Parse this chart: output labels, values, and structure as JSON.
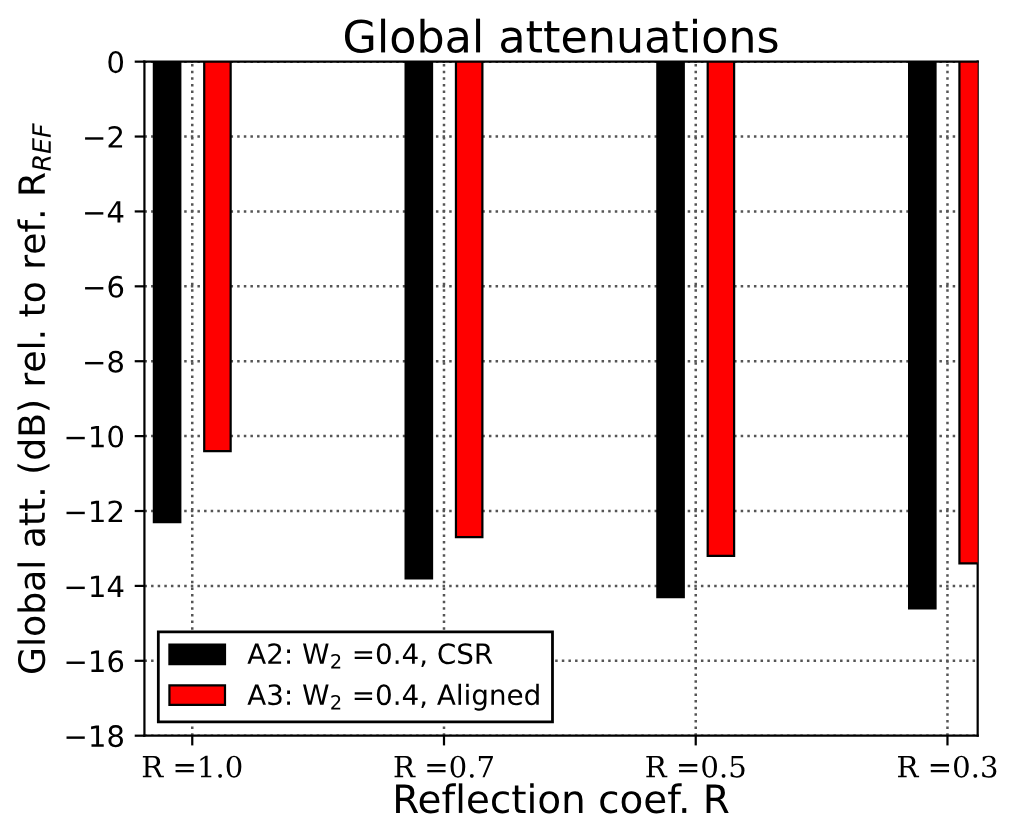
{
  "chart_data": {
    "type": "bar",
    "title": "Global attenuations",
    "xlabel": "Reflection coef. R",
    "ylabel": "Global att. (dB) rel. to ref. R$_{REF}$",
    "categories": [
      "R =1.0",
      "R =0.7",
      "R =0.5",
      "R =0.3"
    ],
    "series": [
      {
        "name": "A2: W$_{2}$ =0.4, CSR",
        "color": "#000000",
        "values": [
          -12.3,
          -13.8,
          -14.3,
          -14.6
        ]
      },
      {
        "name": "A3: W$_{2}$ =0.4, Aligned",
        "color": "#ff0000",
        "values": [
          -10.4,
          -12.7,
          -13.2,
          -13.4
        ]
      }
    ],
    "ylim": [
      -18,
      0
    ],
    "yticks": [
      0,
      -2,
      -4,
      -6,
      -8,
      -10,
      -12,
      -14,
      -16,
      -18
    ],
    "grid": true,
    "legend": "bottom left"
  }
}
